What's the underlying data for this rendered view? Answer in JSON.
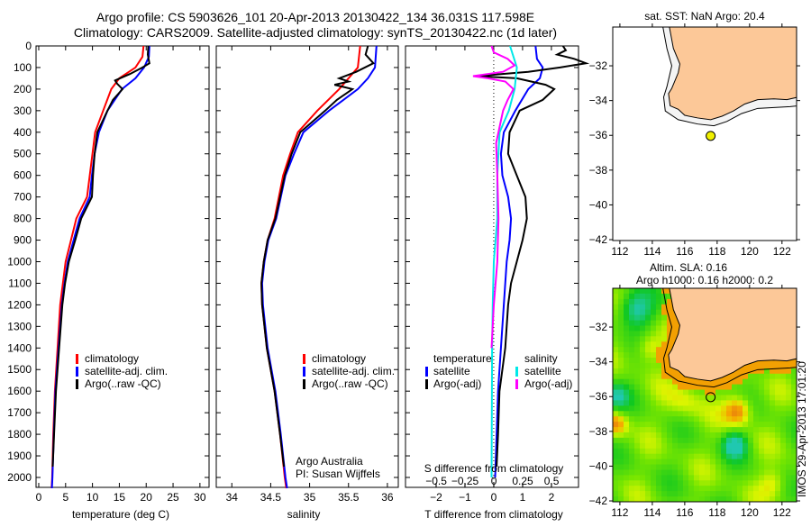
{
  "title_line1": "Argo profile: CS 5903626_101 20-Apr-2013 20130422_134 36.031S 117.598E",
  "title_line2": "Climatology: CARS2009. Satellite-adjusted climatology: synTS_20130422.nc (1d later)",
  "credit": "IMOS 29-Apr-2013 17:01:20",
  "colors": {
    "climatology": "#ff0000",
    "satellite": "#0000ff",
    "argo": "#000000",
    "sal_satellite": "#00e8e8",
    "sal_argo": "#ff00ff",
    "land": "#fcc898",
    "argo_marker": "#f0f000"
  },
  "chart_data": [
    {
      "type": "line",
      "xlabel": "temperature (deg C)",
      "ylabel": "",
      "xlim": [
        -0.5,
        31.7
      ],
      "ylim": [
        2046,
        0
      ],
      "xticks": [
        0,
        5,
        10,
        15,
        20,
        25,
        30
      ],
      "yticks": [
        0,
        100,
        200,
        300,
        400,
        500,
        600,
        700,
        800,
        900,
        1000,
        1100,
        1200,
        1300,
        1400,
        1500,
        1600,
        1700,
        1800,
        1900,
        2000
      ],
      "legend": [
        "climatology",
        "satellite-adj. clim.",
        "Argo(..raw -QC)"
      ],
      "series": [
        {
          "name": "climatology",
          "color": "#ff0000",
          "depth": [
            0,
            50,
            100,
            150,
            200,
            300,
            400,
            500,
            600,
            700,
            800,
            900,
            1000,
            1100,
            1200,
            1400,
            1600,
            1800,
            2000,
            2050
          ],
          "values": [
            19.5,
            19.3,
            18,
            15,
            13.5,
            12,
            10.5,
            10,
            9.5,
            9,
            7,
            6,
            5,
            4.5,
            4,
            3.5,
            3,
            2.7,
            2.5,
            2.4
          ]
        },
        {
          "name": "satellite-adj. clim.",
          "color": "#0000ff",
          "depth": [
            0,
            50,
            100,
            150,
            200,
            300,
            400,
            500,
            600,
            700,
            800,
            900,
            1000,
            1100,
            1200,
            1400,
            1600,
            1800,
            2000,
            2050
          ],
          "values": [
            20.6,
            20.5,
            19.6,
            18,
            15.5,
            12.8,
            11.2,
            10.4,
            9.9,
            9.5,
            7.6,
            6.5,
            5.4,
            4.8,
            4.3,
            3.7,
            3.1,
            2.8,
            2.55,
            2.45
          ]
        },
        {
          "name": "Argo(..raw -QC)",
          "color": "#000000",
          "depth": [
            0,
            40,
            80,
            100,
            130,
            160,
            175,
            200,
            250,
            300,
            400,
            500,
            600,
            700,
            800,
            900,
            1000,
            1100,
            1200,
            1400,
            1600,
            1800,
            1950
          ],
          "values": [
            20.4,
            20.3,
            20.6,
            19.3,
            17,
            14.2,
            14.6,
            15.6,
            13.8,
            12.8,
            10.9,
            10.4,
            10.1,
            9.9,
            7.9,
            6.8,
            5.6,
            4.9,
            4.4,
            3.8,
            3.2,
            2.85,
            2.6
          ]
        }
      ]
    },
    {
      "type": "line",
      "xlabel": "salinity",
      "xlim": [
        33.8,
        36.14
      ],
      "ylim": [
        2046,
        0
      ],
      "xticks": [
        34,
        34.5,
        35,
        35.5,
        36
      ],
      "legend": [
        "climatology",
        "satellite-adj. clim.",
        "Argo(..raw -QC)"
      ],
      "annotation": [
        "Argo Australia",
        "PI: Susan Wijffels"
      ],
      "series": [
        {
          "name": "climatology",
          "color": "#ff0000",
          "depth": [
            0,
            100,
            150,
            200,
            300,
            400,
            500,
            600,
            800,
            900,
            1000,
            1100,
            1200,
            1400,
            1600,
            1800,
            2000,
            2050
          ],
          "values": [
            35.65,
            35.62,
            35.5,
            35.38,
            35.1,
            34.85,
            34.75,
            34.66,
            34.55,
            34.46,
            34.41,
            34.38,
            34.39,
            34.45,
            34.55,
            34.62,
            34.68,
            34.7
          ]
        },
        {
          "name": "satellite-adj. clim.",
          "color": "#0000ff",
          "depth": [
            0,
            100,
            150,
            200,
            300,
            400,
            500,
            600,
            800,
            900,
            1000,
            1100,
            1200,
            1400,
            1600,
            1800,
            2000,
            2050
          ],
          "values": [
            35.86,
            35.84,
            35.75,
            35.62,
            35.25,
            34.92,
            34.8,
            34.69,
            34.57,
            34.47,
            34.42,
            34.39,
            34.4,
            34.46,
            34.56,
            34.63,
            34.69,
            34.71
          ]
        },
        {
          "name": "Argo(..raw -QC)",
          "color": "#000000",
          "depth": [
            0,
            40,
            80,
            120,
            150,
            165,
            180,
            200,
            250,
            300,
            400,
            500,
            600,
            800,
            900,
            1000,
            1100,
            1200,
            1400,
            1600,
            1800,
            1950
          ],
          "values": [
            35.75,
            35.72,
            35.82,
            35.6,
            35.38,
            35.5,
            35.32,
            35.55,
            35.35,
            35.2,
            34.88,
            34.77,
            34.68,
            34.56,
            34.46,
            34.41,
            34.38,
            34.39,
            34.45,
            34.55,
            34.62,
            34.67
          ]
        }
      ]
    },
    {
      "type": "line",
      "xlabel": "T difference from climatology",
      "xlabel_top": "S difference from climatology",
      "xlim": [
        -3.06,
        2.94
      ],
      "xlim_salinity": [
        -0.766,
        0.734
      ],
      "ylim": [
        2046,
        0
      ],
      "xticks": [
        -2,
        -1,
        0,
        1,
        2
      ],
      "xticks_salinity": [
        -0.5,
        -0.25,
        0,
        0.25,
        0.5
      ],
      "legend_temperature_title": "temperature",
      "legend_salinity_title": "salinity",
      "legend": [
        "satellite",
        "Argo(-adj)",
        "satellite",
        "Argo(-adj)"
      ],
      "series": [
        {
          "name": "temperature satellite",
          "color": "#0000ff",
          "axis": "T",
          "depth": [
            0,
            60,
            100,
            150,
            200,
            300,
            400,
            500,
            600,
            700,
            800,
            900,
            1000,
            1200,
            1400,
            1600,
            1800,
            2000
          ],
          "values": [
            1.45,
            1.5,
            1.7,
            1.6,
            1.2,
            0.75,
            0.35,
            0.25,
            0.3,
            0.5,
            0.6,
            0.55,
            0.45,
            0.35,
            0.25,
            0.15,
            0.1,
            0.05
          ]
        },
        {
          "name": "temperature Argo(-adj)",
          "color": "#000000",
          "axis": "T",
          "depth": [
            0,
            20,
            40,
            60,
            80,
            100,
            120,
            140,
            150,
            180,
            200,
            250,
            300,
            400,
            500,
            600,
            700,
            800,
            900,
            1000,
            1100,
            1200,
            1400,
            1600,
            1800,
            1950
          ],
          "values": [
            2.4,
            2.5,
            2.2,
            2.8,
            3.2,
            2.3,
            1.2,
            -0.6,
            0.8,
            1.8,
            2.1,
            1.7,
            0.9,
            0.55,
            0.5,
            0.8,
            1.1,
            1.15,
            1.0,
            0.8,
            0.6,
            0.5,
            0.4,
            0.2,
            0.15,
            0.1
          ]
        },
        {
          "name": "salinity satellite",
          "color": "#00e8e8",
          "axis": "S",
          "depth": [
            0,
            100,
            200,
            300,
            400,
            600,
            800,
            1000,
            1200,
            1400,
            2000
          ],
          "values": [
            0.14,
            0.2,
            0.18,
            0.13,
            0.05,
            0.03,
            0.03,
            0.0,
            -0.01,
            -0.015,
            -0.02
          ]
        },
        {
          "name": "salinity Argo(-adj)",
          "color": "#ff00ff",
          "axis": "S",
          "depth": [
            0,
            30,
            60,
            90,
            120,
            140,
            150,
            165,
            200,
            250,
            300,
            350,
            450,
            600,
            800,
            1000,
            1200,
            1400
          ],
          "values": [
            -0.02,
            0.0,
            0.12,
            0.18,
            0.08,
            -0.18,
            -0.05,
            0.1,
            0.17,
            0.12,
            0.08,
            0.06,
            0.02,
            0.03,
            0.04,
            0.03,
            0.0,
            -0.02
          ]
        }
      ]
    },
    {
      "type": "map",
      "title": "sat. SST: NaN Argo: 20.4",
      "xlim": [
        111.56,
        122.9
      ],
      "ylim": [
        -42.05,
        -29.77
      ],
      "xticks": [
        112,
        114,
        116,
        118,
        120,
        122
      ],
      "yticks": [
        -32,
        -34,
        -36,
        -38,
        -40,
        -42
      ],
      "argo_position": {
        "lon": 117.598,
        "lat": -36.031
      }
    },
    {
      "type": "heatmap",
      "title_line1": "Altim. SLA: 0.16",
      "title_line2": "Argo h1000: 0.16 h2000: 0.2",
      "xlim": [
        111.56,
        122.9
      ],
      "ylim": [
        -42.05,
        -29.77
      ],
      "xticks": [
        112,
        114,
        116,
        118,
        120,
        122
      ],
      "yticks": [
        -32,
        -34,
        -36,
        -38,
        -40,
        -42
      ],
      "argo_position": {
        "lon": 117.598,
        "lat": -36.031
      }
    }
  ]
}
